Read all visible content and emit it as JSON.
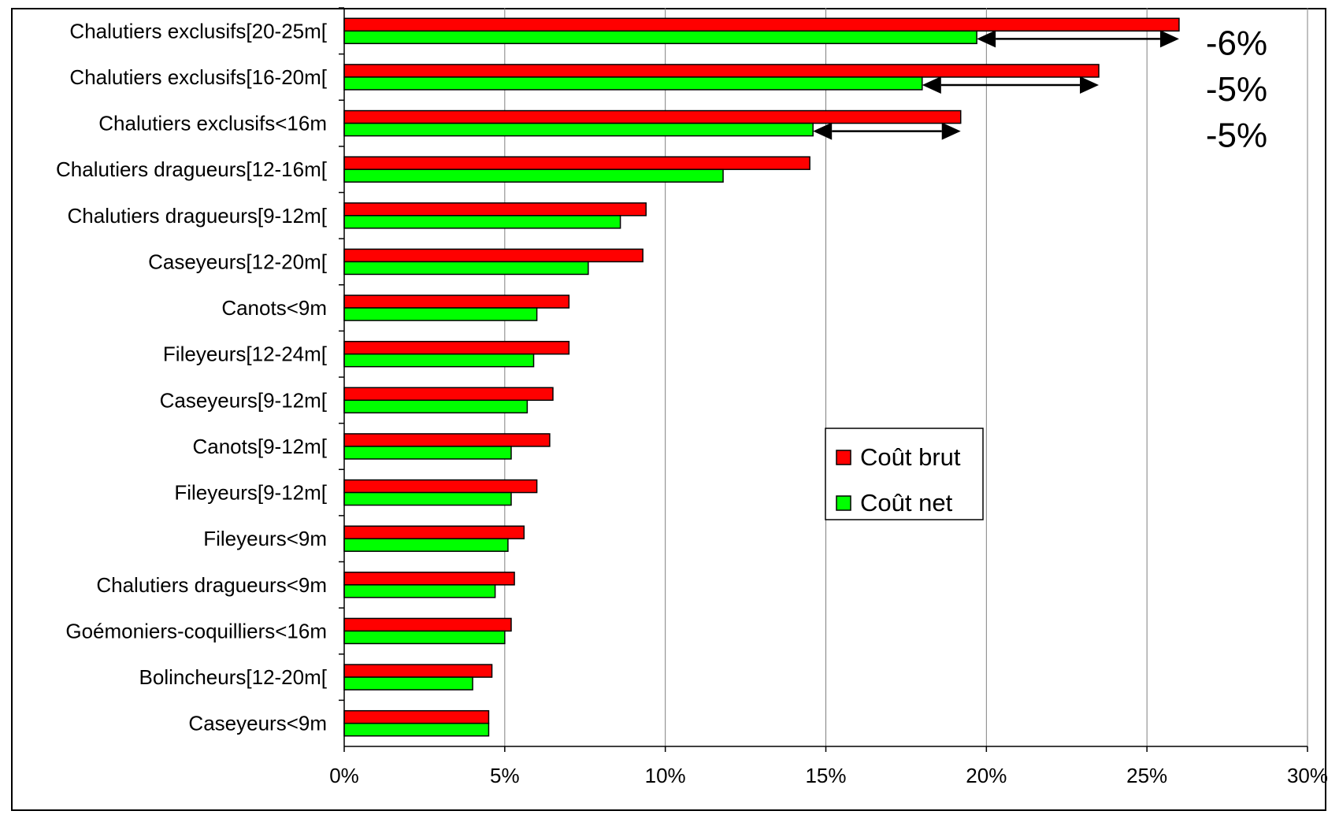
{
  "chart_data": {
    "type": "bar",
    "orientation": "horizontal",
    "categories": [
      "Chalutiers exclusifs[20-25m[",
      "Chalutiers exclusifs[16-20m[",
      "Chalutiers exclusifs<16m",
      "Chalutiers dragueurs[12-16m[",
      "Chalutiers dragueurs[9-12m[",
      "Caseyeurs[12-20m[",
      "Canots<9m",
      "Fileyeurs[12-24m[",
      "Caseyeurs[9-12m[",
      "Canots[9-12m[",
      "Fileyeurs[9-12m[",
      "Fileyeurs<9m",
      "Chalutiers dragueurs<9m",
      "Goémoniers-coquilliers<16m",
      "Bolincheurs[12-20m[",
      "Caseyeurs<9m"
    ],
    "series": [
      {
        "name": "Coût brut",
        "color": "#ff0000",
        "values": [
          26.0,
          23.5,
          19.2,
          14.5,
          9.4,
          9.3,
          7.0,
          7.0,
          6.5,
          6.4,
          6.0,
          5.6,
          5.3,
          5.2,
          4.6,
          4.5
        ]
      },
      {
        "name": "Coût net",
        "color": "#00ff00",
        "values": [
          19.7,
          18.0,
          14.6,
          11.8,
          8.6,
          7.6,
          6.0,
          5.9,
          5.7,
          5.2,
          5.2,
          5.1,
          4.7,
          5.0,
          4.0,
          4.5
        ]
      }
    ],
    "x_ticks": [
      "0%",
      "5%",
      "10%",
      "15%",
      "20%",
      "25%",
      "30%"
    ],
    "xlim": [
      0,
      30
    ],
    "grid": "vertical",
    "legend": "right-middle",
    "annotations": [
      {
        "category_index": 0,
        "text": "-6%"
      },
      {
        "category_index": 1,
        "text": "-5%"
      },
      {
        "category_index": 2,
        "text": "-5%"
      }
    ]
  }
}
